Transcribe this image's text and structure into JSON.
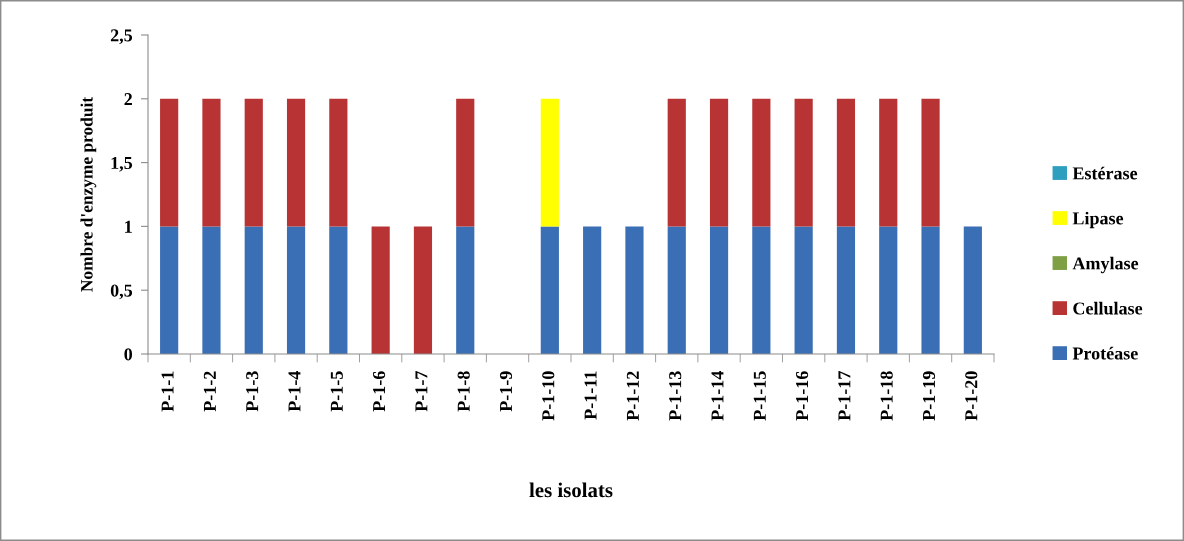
{
  "chart_data": {
    "type": "bar",
    "stacked": true,
    "xlabel": "les isolats",
    "ylabel": "Nombre d'enzyme produit",
    "categories": [
      "P-1-1",
      "P-1-2",
      "P-1-3",
      "P-1-4",
      "P-1-5",
      "P-1-6",
      "P-1-7",
      "P-1-8",
      "P-1-9",
      "P-1-10",
      "P-1-11",
      "P-1-12",
      "P-1-13",
      "P-1-14",
      "P-1-15",
      "P-1-16",
      "P-1-17",
      "P-1-18",
      "P-1-19",
      "P-1-20"
    ],
    "series": [
      {
        "name": "Protéase",
        "color": "#3a6fb5",
        "values": [
          1,
          1,
          1,
          1,
          1,
          0,
          0,
          1,
          0,
          1,
          1,
          1,
          1,
          1,
          1,
          1,
          1,
          1,
          1,
          1
        ]
      },
      {
        "name": "Cellulase",
        "color": "#b83434",
        "values": [
          1,
          1,
          1,
          1,
          1,
          1,
          1,
          1,
          0,
          0,
          0,
          0,
          1,
          1,
          1,
          1,
          1,
          1,
          1,
          0
        ]
      },
      {
        "name": "Amylase",
        "color": "#7f9f44",
        "values": [
          0,
          0,
          0,
          0,
          0,
          0,
          0,
          0,
          0,
          0,
          0,
          0,
          0,
          0,
          0,
          0,
          0,
          0,
          0,
          0
        ]
      },
      {
        "name": "Lipase",
        "color": "#ffff00",
        "values": [
          0,
          0,
          0,
          0,
          0,
          0,
          0,
          0,
          0,
          1,
          0,
          0,
          0,
          0,
          0,
          0,
          0,
          0,
          0,
          0
        ]
      },
      {
        "name": "Estérase",
        "color": "#2f9fbf",
        "values": [
          0,
          0,
          0,
          0,
          0,
          0,
          0,
          0,
          0,
          0,
          0,
          0,
          0,
          0,
          0,
          0,
          0,
          0,
          0,
          0
        ]
      }
    ],
    "ylim": [
      0,
      2.5
    ],
    "yticks": [
      0,
      {
        "value": 0.5,
        "label": "0,5"
      },
      1,
      {
        "value": 1.5,
        "label": "1,5"
      },
      2,
      {
        "value": 2.5,
        "label": "2,5"
      }
    ],
    "grid": false,
    "legend": "right"
  }
}
